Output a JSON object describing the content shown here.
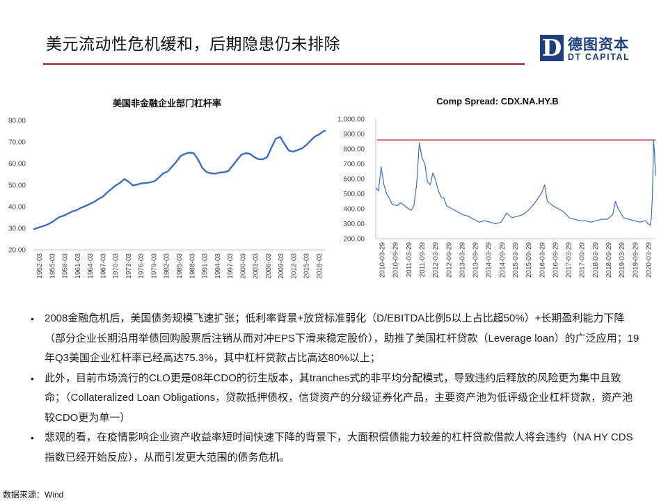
{
  "title": "美元流动性危机缓和，后期隐患仍未排除",
  "logo": {
    "mark": "D",
    "name_cn": "德图资本",
    "name_en": "DT CAPITAL"
  },
  "colors": {
    "accent_rule": "#a01820",
    "brand_blue": "#1b3f7f",
    "series_blue": "#3a6ec0",
    "threshold_red": "#c0141e"
  },
  "chart_data": [
    {
      "type": "line",
      "title": "美国非金融企业部门杠杆率",
      "ylim": [
        20,
        80
      ],
      "yticks": [
        "80.00",
        "70.00",
        "60.00",
        "50.00",
        "40.00",
        "30.00",
        "20.00"
      ],
      "xticks": [
        "1952-03",
        "1955-03",
        "1958-03",
        "1961-03",
        "1964-03",
        "1967-03",
        "1970-03",
        "1973-03",
        "1976-03",
        "1979-03",
        "1982-03",
        "1985-03",
        "1988-03",
        "1991-03",
        "1994-03",
        "1997-03",
        "2000-03",
        "2003-03",
        "2006-03",
        "2009-03",
        "2012-03",
        "2015-03",
        "2018-03"
      ],
      "x": [
        1952,
        1953,
        1954,
        1955,
        1956,
        1957,
        1958,
        1959,
        1960,
        1961,
        1962,
        1963,
        1964,
        1965,
        1966,
        1967,
        1968,
        1969,
        1970,
        1971,
        1972,
        1973,
        1974,
        1975,
        1976,
        1977,
        1978,
        1979,
        1980,
        1981,
        1982,
        1983,
        1984,
        1985,
        1986,
        1987,
        1988,
        1989,
        1990,
        1991,
        1992,
        1993,
        1994,
        1995,
        1996,
        1997,
        1998,
        1999,
        2000,
        2001,
        2002,
        2003,
        2004,
        2005,
        2006,
        2007,
        2008,
        2009,
        2010,
        2011,
        2012,
        2013,
        2014,
        2015,
        2016,
        2017,
        2018,
        2019,
        2019.5
      ],
      "values": [
        29.5,
        30.2,
        30.8,
        31.5,
        32.5,
        33.8,
        35.2,
        35.8,
        36.8,
        37.8,
        38.4,
        39.5,
        40.3,
        41.2,
        42.2,
        43.5,
        44.6,
        46.5,
        48.2,
        49.8,
        51.0,
        52.8,
        51.5,
        49.8,
        50.3,
        50.8,
        51.0,
        51.3,
        51.8,
        53.5,
        55.5,
        56.3,
        58.5,
        60.8,
        63.5,
        64.5,
        65.0,
        64.8,
        62.0,
        58.0,
        56.0,
        55.5,
        55.3,
        55.8,
        56.0,
        56.5,
        59.0,
        61.5,
        64.0,
        64.8,
        64.5,
        63.0,
        62.0,
        62.0,
        63.0,
        67.5,
        71.5,
        72.3,
        69.0,
        66.0,
        65.5,
        66.2,
        67.0,
        68.5,
        70.5,
        72.5,
        73.5,
        75.0,
        75.3
      ]
    },
    {
      "type": "line",
      "title": "Comp Spread: CDX.NA.HY.B",
      "ylim": [
        200,
        1000
      ],
      "yticks": [
        "1,000.00",
        "900.00",
        "800.00",
        "700.00",
        "600.00",
        "500.00",
        "400.00",
        "300.00",
        "200.00"
      ],
      "xticks": [
        "2010-03-29",
        "2010-09-29",
        "2011-03-29",
        "2011-09-29",
        "2012-03-29",
        "2012-09-29",
        "2013-03-29",
        "2013-09-29",
        "2014-03-29",
        "2014-09-29",
        "2015-03-29",
        "2015-09-29",
        "2016-03-29",
        "2016-09-29",
        "2017-03-29",
        "2017-09-29",
        "2018-03-29",
        "2018-09-29",
        "2019-03-29",
        "2019-09-29",
        "2020-03-29"
      ],
      "x": [
        2010.0,
        2010.1,
        2010.2,
        2010.3,
        2010.4,
        2010.5,
        2010.6,
        2010.8,
        2010.9,
        2011.0,
        2011.2,
        2011.3,
        2011.4,
        2011.5,
        2011.6,
        2011.7,
        2011.8,
        2011.9,
        2012.0,
        2012.1,
        2012.2,
        2012.3,
        2012.4,
        2012.5,
        2012.6,
        2012.8,
        2013.0,
        2013.2,
        2013.4,
        2013.6,
        2013.8,
        2014.0,
        2014.2,
        2014.4,
        2014.6,
        2014.8,
        2015.0,
        2015.2,
        2015.4,
        2015.6,
        2015.8,
        2016.0,
        2016.1,
        2016.2,
        2016.3,
        2016.5,
        2016.7,
        2016.9,
        2017.1,
        2017.3,
        2017.5,
        2017.7,
        2017.9,
        2018.1,
        2018.3,
        2018.5,
        2018.7,
        2018.8,
        2018.9,
        2019.0,
        2019.1,
        2019.3,
        2019.5,
        2019.7,
        2019.9,
        2020.0,
        2020.08,
        2020.12,
        2020.16,
        2020.2,
        2020.24,
        2020.27
      ],
      "values": [
        540,
        520,
        680,
        560,
        500,
        470,
        430,
        420,
        440,
        430,
        400,
        390,
        420,
        560,
        840,
        740,
        700,
        580,
        560,
        640,
        590,
        520,
        480,
        470,
        420,
        400,
        380,
        360,
        350,
        330,
        310,
        320,
        310,
        300,
        310,
        370,
        340,
        350,
        360,
        390,
        430,
        480,
        510,
        560,
        450,
        420,
        400,
        380,
        340,
        330,
        320,
        320,
        310,
        320,
        330,
        330,
        360,
        450,
        400,
        370,
        340,
        330,
        320,
        310,
        320,
        300,
        290,
        340,
        500,
        860,
        760,
        620
      ],
      "threshold": 860
    }
  ],
  "bullets": [
    "2008金融危机后，美国债务规模飞速扩张；低利率背景+放贷标准弱化（D/EBITDA比例5以上占比超50%）+长期盈利能力下降（部分企业长期沿用举债回购股票后注销从而对冲EPS下滑来稳定股价），助推了美国杠杆贷款（Leverage loan）的广泛应用；19年Q3美国企业杠杆率已经高达75.3%，其中杠杆贷款占比高达80%以上；",
    "此外，目前市场流行的CLO更是08年CDO的衍生版本，其tranches式的非平均分配模式，导致违约后释放的风险更为集中且致命；（Collateralized Loan Obligations，贷款抵押债权，信贷资产的分级证券化产品，主要资产池为低评级企业杠杆贷款，资产池较CDO更为单一）",
    "悲观的看，在疫情影响企业资产收益率短时间快速下降的背景下，大面积偿债能力较差的杠杆贷款借款人将会违约（NA HY CDS指数已经开始反应），从而引发更大范围的债务危机。"
  ],
  "source": "数据来源：Wind"
}
